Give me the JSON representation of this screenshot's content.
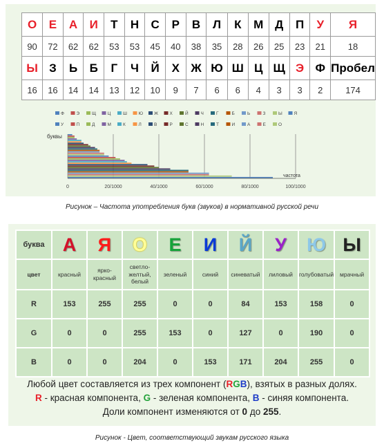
{
  "freq_table": {
    "row1_letters": [
      "О",
      "Е",
      "А",
      "И",
      "Т",
      "Н",
      "С",
      "Р",
      "В",
      "Л",
      "К",
      "М",
      "Д",
      "П",
      "У",
      "Я"
    ],
    "row1_numbers": [
      "90",
      "72",
      "62",
      "62",
      "53",
      "53",
      "45",
      "40",
      "38",
      "35",
      "28",
      "26",
      "25",
      "23",
      "21",
      "18"
    ],
    "row2_letters": [
      "Ы",
      "З",
      "Ь",
      "Б",
      "Г",
      "Ч",
      "Й",
      "Х",
      "Ж",
      "Ю",
      "Ш",
      "Ц",
      "Щ",
      "Э",
      "Ф",
      "Пробел"
    ],
    "row2_numbers": [
      "16",
      "16",
      "14",
      "14",
      "13",
      "12",
      "10",
      "9",
      "7",
      "6",
      "6",
      "4",
      "3",
      "3",
      "2",
      "174"
    ],
    "red_color": "#e8202a"
  },
  "chart_data": {
    "type": "bar",
    "orientation": "horizontal",
    "ylabel": "буквы",
    "xlabel": "частота",
    "xlim": [
      0,
      100
    ],
    "tick_labels": [
      "0",
      "20/1000",
      "40/1000",
      "60/1000",
      "80/1000",
      "100/1000"
    ],
    "tick_values": [
      0,
      20,
      40,
      60,
      80,
      100
    ],
    "legend_row1": [
      "Ф",
      "Э",
      "Щ",
      "Ц",
      "Ш",
      "Ю",
      "Ж",
      "Х",
      "Й",
      "Ч",
      "Г",
      "Б",
      "Ь",
      "З",
      "Ы",
      "Я"
    ],
    "legend_row2": [
      "У",
      "П",
      "Д",
      "М",
      "К",
      "Л",
      "В",
      "Р",
      "С",
      "Н",
      "Т",
      "И",
      "А",
      "Е",
      "О"
    ],
    "legend_position": "top",
    "categories": [
      "Ф",
      "Э",
      "Щ",
      "Ц",
      "Ш",
      "Ю",
      "Ж",
      "Х",
      "Й",
      "Ч",
      "Г",
      "Б",
      "Ь",
      "З",
      "Ы",
      "Я",
      "У",
      "П",
      "Д",
      "М",
      "К",
      "Л",
      "В",
      "Р",
      "С",
      "Н",
      "Т",
      "И",
      "А",
      "Е",
      "О"
    ],
    "values": [
      2,
      3,
      3,
      4,
      6,
      6,
      7,
      9,
      10,
      12,
      13,
      14,
      14,
      16,
      16,
      18,
      21,
      23,
      25,
      26,
      28,
      35,
      38,
      40,
      45,
      53,
      53,
      62,
      62,
      72,
      90
    ],
    "colors": [
      "#4f81bd",
      "#c0504d",
      "#9bbb59",
      "#8064a2",
      "#4bacc6",
      "#f79646",
      "#2c4d75",
      "#772c2a",
      "#5f7530",
      "#4d3b62",
      "#276a7c",
      "#b65708",
      "#729aca",
      "#cd7371",
      "#afc97a"
    ]
  },
  "caption1": "Рисунок – Частота употребления букв (звуков) в нормативной русской речи",
  "color_table": {
    "header_label": "буква",
    "letters": [
      {
        "char": "А",
        "color": "#d4122a"
      },
      {
        "char": "Я",
        "color": "#ff1a1a"
      },
      {
        "char": "О",
        "color": "#ffff99"
      },
      {
        "char": "Е",
        "color": "#16a33a"
      },
      {
        "char": "И",
        "color": "#0a3ad6"
      },
      {
        "char": "Й",
        "color": "#5aa6c8"
      },
      {
        "char": "У",
        "color": "#9a22c8"
      },
      {
        "char": "Ю",
        "color": "#8ec8e8"
      },
      {
        "char": "Ы",
        "color": "#222222"
      }
    ],
    "color_label": "цвет",
    "color_names": [
      "красный",
      "ярко-красный",
      "светло-желтый, белый",
      "зеленый",
      "синий",
      "синеватый",
      "лиловый",
      "голубоватый",
      "мрачный"
    ],
    "rows": [
      {
        "label": "R",
        "values": [
          "153",
          "255",
          "255",
          "0",
          "0",
          "84",
          "153",
          "158",
          "0"
        ]
      },
      {
        "label": "G",
        "values": [
          "0",
          "0",
          "255",
          "153",
          "0",
          "127",
          "0",
          "190",
          "0"
        ]
      },
      {
        "label": "B",
        "values": [
          "0",
          "0",
          "204",
          "0",
          "153",
          "171",
          "204",
          "255",
          "0"
        ]
      }
    ]
  },
  "description": {
    "line1_a": "Любой цвет составляется из трех компонент (",
    "rgb_r": "R",
    "rgb_g": "G",
    "rgb_b": "B",
    "line1_b": "), взятых в разных долях.",
    "r_letter": "R",
    "r_text": " - красная компонента, ",
    "g_letter": "G",
    "g_text": " - зеленая компонента, ",
    "b_letter": "B",
    "b_text": " - синяя компонента.",
    "line3_a": "Доли компонент изменяются от ",
    "from": "0",
    "line3_b": " до ",
    "to": "255",
    "line3_c": ".",
    "red": "#e8202a",
    "green": "#23a23a",
    "blue": "#1e3cc8"
  },
  "caption2": "Рисунок - Цвет, соответствующий звукам русского языка"
}
